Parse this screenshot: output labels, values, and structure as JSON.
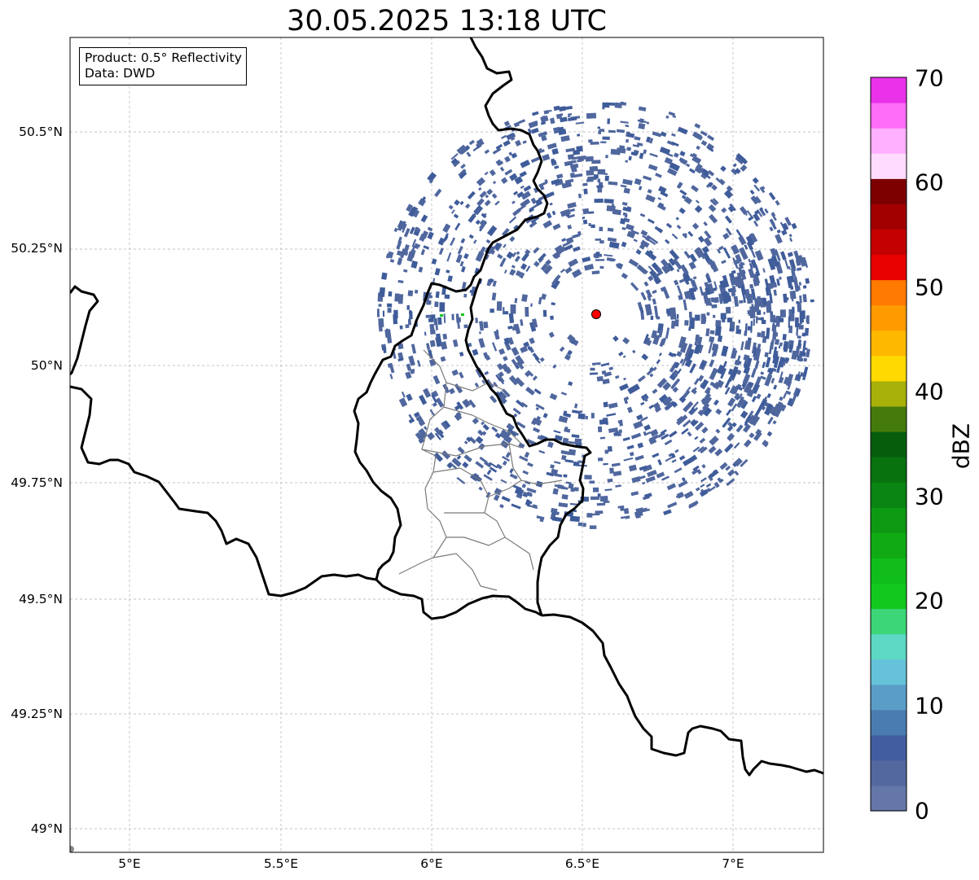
{
  "title": "30.05.2025 13:18 UTC",
  "info": {
    "product": "Product: 0.5° Reflectivity",
    "data": "Data: DWD"
  },
  "axes": {
    "lat_labels": [
      "50.5°N",
      "50.25°N",
      "50°N",
      "49.75°N",
      "49.5°N",
      "49.25°N",
      "49°N"
    ],
    "lat_values": [
      50.5,
      50.25,
      50.0,
      49.75,
      49.5,
      49.25,
      49.0
    ],
    "lon_labels": [
      "5°E",
      "5.5°E",
      "6°E",
      "6.5°E",
      "7°E"
    ],
    "lon_values": [
      5.0,
      5.5,
      6.0,
      6.5,
      7.0
    ],
    "lon_range": [
      4.8,
      7.3
    ],
    "lat_range": [
      48.95,
      50.7
    ],
    "grid": true
  },
  "radar_site": {
    "lon": 6.548,
    "lat": 50.11,
    "color": "#ff0000"
  },
  "colorbar": {
    "label": "dBZ",
    "ticks": [
      "0",
      "10",
      "20",
      "30",
      "40",
      "50",
      "60",
      "70"
    ],
    "min": 0,
    "max": 70,
    "step": 2.5,
    "colors": [
      "#6577a8",
      "#53689f",
      "#425ea0",
      "#4a7cb2",
      "#5a9ec8",
      "#66c2d8",
      "#5cd8c4",
      "#3cd678",
      "#12c81f",
      "#10bd1a",
      "#10ab14",
      "#0e9913",
      "#0a8412",
      "#08720f",
      "#065e0c",
      "#457a0c",
      "#a8b00a",
      "#ffd900",
      "#ffb800",
      "#ff9a00",
      "#ff7a00",
      "#e80000",
      "#c40000",
      "#a20000",
      "#7c0000",
      "#ffdcff",
      "#ffb0ff",
      "#ff6cf8",
      "#e932ea"
    ]
  },
  "colors": {
    "echo": "#50679e",
    "echo_dark": "#3f5c9a",
    "light_echo": "#12c81f"
  }
}
